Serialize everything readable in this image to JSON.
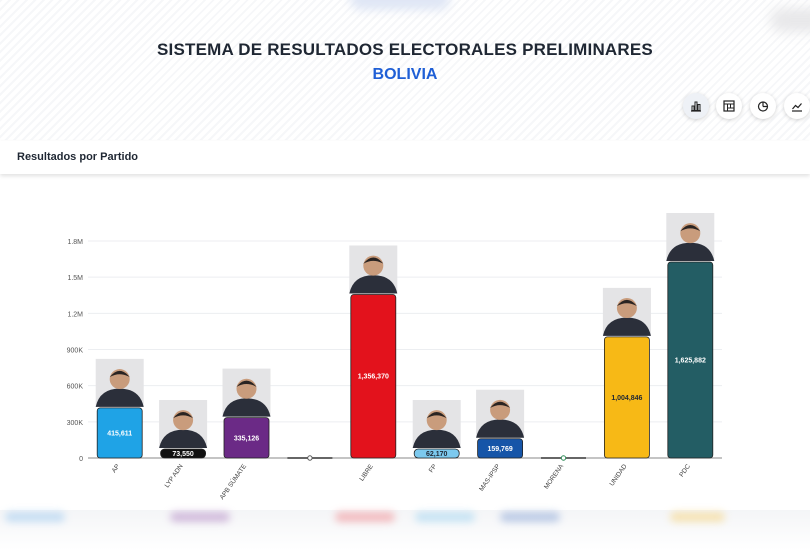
{
  "header": {
    "title": "SISTEMA DE RESULTADOS ELECTORALES PRELIMINARES",
    "subtitle": "BOLIVIA"
  },
  "view_buttons": [
    {
      "icon": "bar-chart-icon",
      "active": true
    },
    {
      "icon": "treemap-icon",
      "active": false
    },
    {
      "icon": "pie-chart-icon",
      "active": false
    },
    {
      "icon": "line-chart-icon",
      "active": false
    }
  ],
  "section": {
    "title": "Resultados por Partido"
  },
  "chart_data": {
    "type": "bar",
    "categories": [
      "AP",
      "LYP ADN",
      "APB SÚMATE",
      "",
      "LIBRE",
      "FP",
      "MAS-IPSP",
      "MORENA",
      "UNIDAD",
      "PDC"
    ],
    "values": [
      415611,
      73550,
      335126,
      0,
      1356370,
      62170,
      159769,
      0,
      1004846,
      1625882
    ],
    "value_labels": [
      "415,611",
      "73,550",
      "335,126",
      "",
      "1,356,370",
      "62,170",
      "159,769",
      "",
      "1,004,846",
      "1,625,882"
    ],
    "colors": [
      "#1fa3e6",
      "#111111",
      "#6b2a86",
      "#555555",
      "#e3121c",
      "#7cc9ee",
      "#1655a8",
      "#2e8b57",
      "#f7b916",
      "#235d64"
    ],
    "has_photo": [
      true,
      true,
      true,
      false,
      true,
      true,
      true,
      false,
      true,
      true
    ],
    "yticks": [
      0,
      300000,
      600000,
      900000,
      1200000,
      1500000,
      1800000
    ],
    "ytick_labels": [
      "0",
      "300K",
      "600K",
      "900K",
      "1.2M",
      "1.5M",
      "1.8M"
    ],
    "ylim": [
      0,
      1800000
    ],
    "grid": true
  }
}
